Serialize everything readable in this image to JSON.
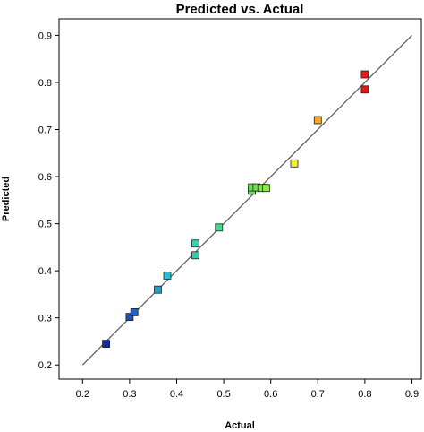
{
  "chart_data": {
    "type": "scatter",
    "title": "Predicted vs. Actual",
    "xlabel": "Actual",
    "ylabel": "Predicted",
    "xlim": [
      0.15,
      0.92
    ],
    "ylim": [
      0.17,
      0.935
    ],
    "xticks": [
      "0.2",
      "0.3",
      "0.4",
      "0.5",
      "0.6",
      "0.7",
      "0.8",
      "0.9"
    ],
    "yticks": [
      "0.2",
      "0.3",
      "0.4",
      "0.5",
      "0.6",
      "0.7",
      "0.8",
      "0.9"
    ],
    "reference_line": {
      "x": [
        0.2,
        0.9
      ],
      "y": [
        0.2,
        0.9
      ]
    },
    "grid": false,
    "points": [
      {
        "x": 0.25,
        "y": 0.245,
        "color": "#0a2fa8"
      },
      {
        "x": 0.3,
        "y": 0.302,
        "color": "#1a4fc4"
      },
      {
        "x": 0.31,
        "y": 0.312,
        "color": "#1e63cc"
      },
      {
        "x": 0.36,
        "y": 0.36,
        "color": "#1e9fc8"
      },
      {
        "x": 0.38,
        "y": 0.39,
        "color": "#28bfd0"
      },
      {
        "x": 0.44,
        "y": 0.433,
        "color": "#2ecfa8"
      },
      {
        "x": 0.44,
        "y": 0.458,
        "color": "#2fd4b0"
      },
      {
        "x": 0.49,
        "y": 0.492,
        "color": "#3fdc8c"
      },
      {
        "x": 0.56,
        "y": 0.57,
        "color": "#5fe060"
      },
      {
        "x": 0.56,
        "y": 0.577,
        "color": "#6ae05a"
      },
      {
        "x": 0.57,
        "y": 0.577,
        "color": "#74e254"
      },
      {
        "x": 0.58,
        "y": 0.576,
        "color": "#80e450"
      },
      {
        "x": 0.59,
        "y": 0.576,
        "color": "#8ee64c"
      },
      {
        "x": 0.65,
        "y": 0.628,
        "color": "#f2f03a"
      },
      {
        "x": 0.7,
        "y": 0.72,
        "color": "#f4a52a"
      },
      {
        "x": 0.8,
        "y": 0.785,
        "color": "#e81818"
      },
      {
        "x": 0.8,
        "y": 0.817,
        "color": "#e81818"
      }
    ]
  }
}
